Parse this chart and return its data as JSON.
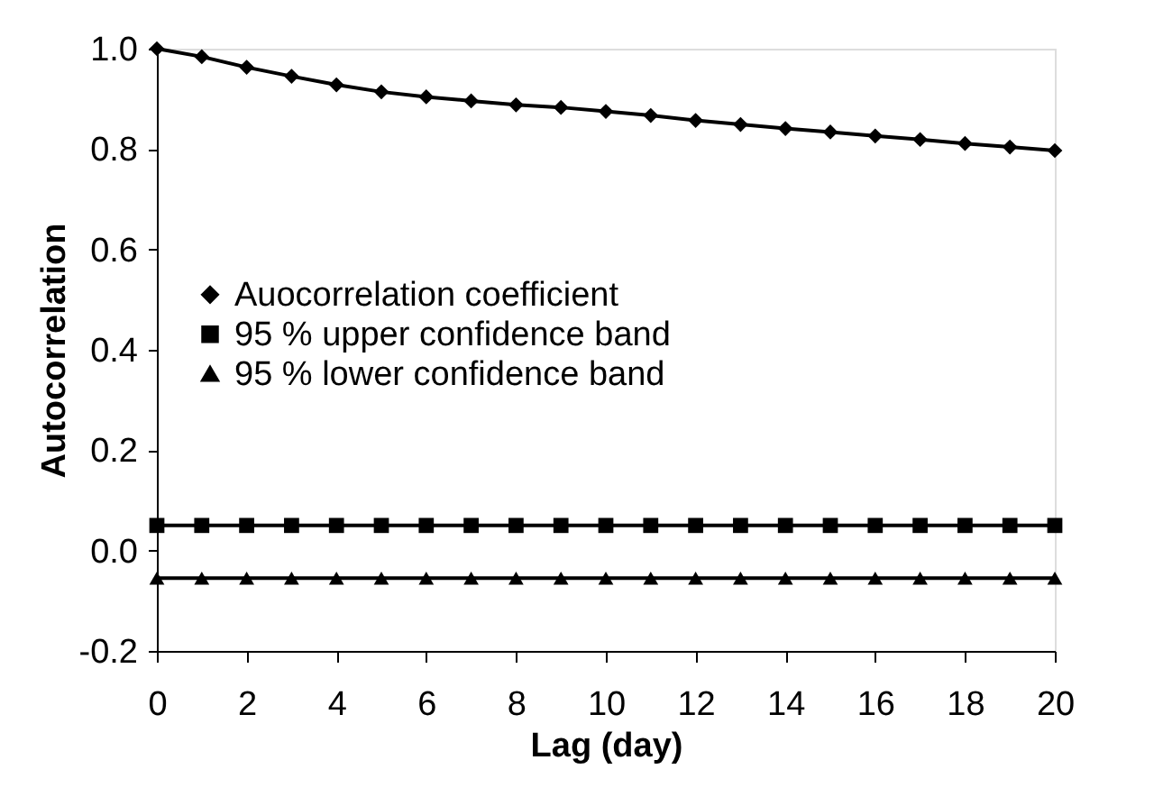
{
  "chart_data": {
    "type": "line",
    "xlabel": "Lag (day)",
    "ylabel": "Autocorrelation",
    "x": [
      0,
      1,
      2,
      3,
      4,
      5,
      6,
      7,
      8,
      9,
      10,
      11,
      12,
      13,
      14,
      15,
      16,
      17,
      18,
      19,
      20
    ],
    "series": [
      {
        "name": "Auocorrelation coefficient",
        "color": "#000000",
        "marker": "diamond",
        "values": [
          1.0,
          0.984,
          0.963,
          0.945,
          0.928,
          0.914,
          0.904,
          0.896,
          0.888,
          0.883,
          0.875,
          0.867,
          0.857,
          0.849,
          0.841,
          0.834,
          0.826,
          0.819,
          0.811,
          0.804,
          0.797
        ]
      },
      {
        "name": "95 % upper confidence band",
        "color": "#000000",
        "marker": "square",
        "values": [
          0.05,
          0.05,
          0.05,
          0.05,
          0.05,
          0.05,
          0.05,
          0.05,
          0.05,
          0.05,
          0.05,
          0.05,
          0.05,
          0.05,
          0.05,
          0.05,
          0.05,
          0.05,
          0.05,
          0.05,
          0.05
        ]
      },
      {
        "name": "95 % lower confidence band",
        "color": "#000000",
        "marker": "triangle",
        "values": [
          -0.055,
          -0.055,
          -0.055,
          -0.055,
          -0.055,
          -0.055,
          -0.055,
          -0.055,
          -0.055,
          -0.055,
          -0.055,
          -0.055,
          -0.055,
          -0.055,
          -0.055,
          -0.055,
          -0.055,
          -0.055,
          -0.055,
          -0.055,
          -0.055
        ]
      }
    ],
    "xlim": [
      0,
      20
    ],
    "xticks": [
      0,
      2,
      4,
      6,
      8,
      10,
      12,
      14,
      16,
      18,
      20
    ],
    "ylim": [
      -0.2,
      1.0
    ],
    "yticks": [
      {
        "value": -0.2,
        "label": "-0.2"
      },
      {
        "value": 0.0,
        "label": "0.0"
      },
      {
        "value": 0.2,
        "label": "0.2"
      },
      {
        "value": 0.4,
        "label": "0.4"
      },
      {
        "value": 0.6,
        "label": "0.6"
      },
      {
        "value": 0.8,
        "label": "0.8"
      },
      {
        "value": 1.0,
        "label": "1.0"
      }
    ],
    "grid": false,
    "legend": "left",
    "line_style": "solid"
  }
}
